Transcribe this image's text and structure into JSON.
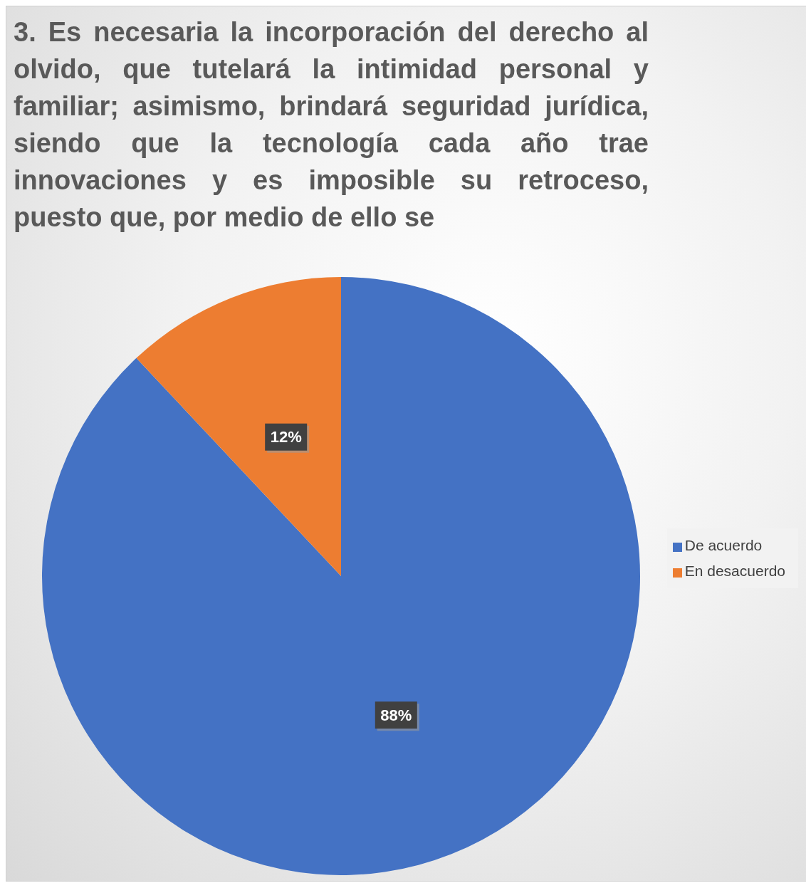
{
  "chart_data": {
    "type": "pie",
    "title": "3. Es necesaria la incorporación del derecho al olvido, que tutelará la intimidad personal y familiar; asimismo, brindará seguridad jurídica, siendo que la tecnología cada año trae innovaciones y es imposible su retroceso, puesto que, por medio de ello se",
    "categories": [
      "De acuerdo",
      "En desacuerdo"
    ],
    "values": [
      88,
      12
    ],
    "colors": [
      "#4472c4",
      "#ed7d31"
    ],
    "value_labels": [
      "88%",
      "12%"
    ],
    "legend": "right"
  }
}
